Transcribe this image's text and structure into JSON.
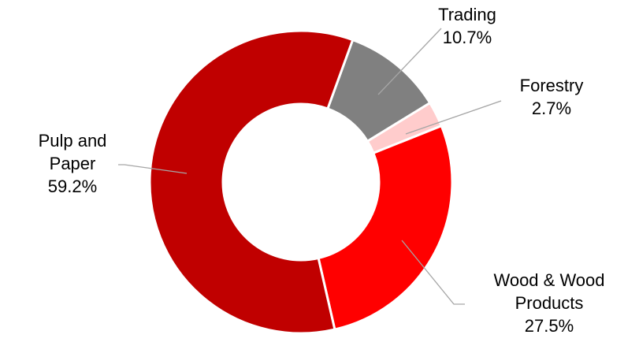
{
  "chart_data": {
    "type": "donut",
    "categories": [
      "Trading",
      "Forestry",
      "Wood & Wood Products",
      "Pulp and Paper"
    ],
    "values": [
      10.7,
      2.7,
      27.5,
      59.2
    ],
    "value_labels": [
      "10.7%",
      "2.7%",
      "27.5%",
      "59.2%"
    ],
    "colors": [
      "#808080",
      "#ffcccc",
      "#ff0000",
      "#c00000"
    ]
  }
}
